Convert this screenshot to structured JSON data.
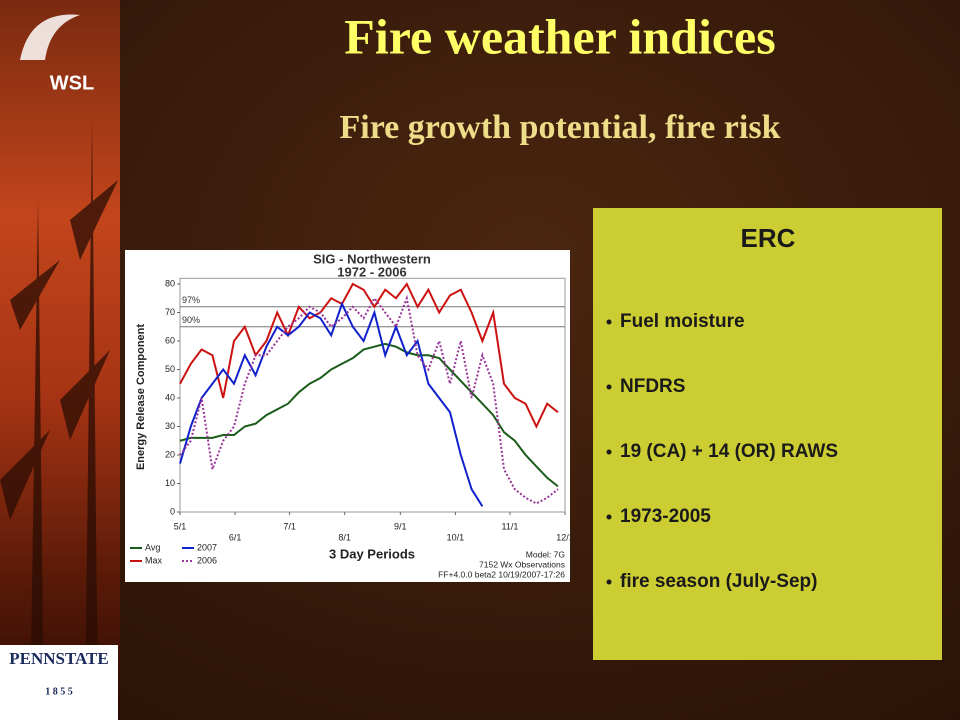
{
  "header": {
    "title": "Fire weather indices",
    "subtitle": "Fire growth potential, fire risk"
  },
  "logos": {
    "top": "WSL",
    "bottom": "PENNSTATE",
    "bottom_year": "1 8 5 5"
  },
  "panel": {
    "title": "ERC",
    "bullets": [
      "Fuel moisture",
      "NFDRS",
      "19 (CA) + 14 (OR) RAWS",
      "1973-2005",
      "fire season (July-Sep)"
    ]
  },
  "chart_data": {
    "type": "line",
    "title": "SIG - Northwestern",
    "subtitle": "1972 - 2006",
    "y_label": "Energy Release Component",
    "x_label": "3 Day Periods",
    "annotations": [
      "Model: 7G",
      "7152 Wx Observations",
      "FF+4.0.0 beta2 10/19/2007-17:26"
    ],
    "reference_lines": [
      {
        "label": "97%",
        "value": 72
      },
      {
        "label": "90%",
        "value": 65
      }
    ],
    "x": [
      0,
      2,
      4,
      6,
      8,
      10,
      12,
      14,
      16,
      18,
      20,
      22,
      24,
      26,
      28,
      30,
      32,
      34,
      36,
      38,
      40,
      42,
      44,
      46,
      48,
      50,
      52,
      54,
      56,
      58,
      60,
      62,
      64,
      66,
      68,
      70
    ],
    "xlim": [
      0,
      71.3
    ],
    "xticks": [
      {
        "value": 0,
        "label": "5/1"
      },
      {
        "value": 10.2,
        "label": "6/1"
      },
      {
        "value": 20.3,
        "label": "7/1"
      },
      {
        "value": 30.5,
        "label": "8/1"
      },
      {
        "value": 40.8,
        "label": "9/1"
      },
      {
        "value": 51,
        "label": "10/1"
      },
      {
        "value": 61.1,
        "label": "11/1"
      },
      {
        "value": 71.3,
        "label": "12/1"
      }
    ],
    "ylim": [
      0,
      82
    ],
    "yticks": [
      0,
      10,
      20,
      30,
      40,
      50,
      60,
      70,
      80
    ],
    "grid": false,
    "series": [
      {
        "name": "Avg",
        "color": "#1a5c1a",
        "dash": false,
        "values": [
          25,
          26,
          26,
          26,
          27,
          27,
          30,
          31,
          34,
          36,
          38,
          42,
          45,
          47,
          50,
          52,
          54,
          57,
          58,
          59,
          58,
          56,
          55,
          55,
          54,
          50,
          46,
          42,
          38,
          34,
          28,
          25,
          20,
          16,
          12,
          9
        ]
      },
      {
        "name": "Max",
        "color": "#cc1111",
        "dash": false,
        "values": [
          45,
          52,
          57,
          55,
          40,
          60,
          65,
          55,
          60,
          70,
          62,
          72,
          68,
          70,
          75,
          73,
          80,
          78,
          72,
          78,
          75,
          80,
          72,
          78,
          70,
          76,
          78,
          70,
          60,
          70,
          45,
          40,
          38,
          30,
          38,
          35
        ]
      },
      {
        "name": "2007",
        "color": "#1122cc",
        "dash": false,
        "values": [
          17,
          30,
          40,
          45,
          50,
          45,
          55,
          48,
          58,
          65,
          62,
          65,
          70,
          68,
          62,
          73,
          65,
          60,
          70,
          55,
          65,
          55,
          60,
          45,
          40,
          35,
          20,
          8,
          2,
          null,
          null,
          null,
          null,
          null,
          null,
          null
        ]
      },
      {
        "name": "2006",
        "color": "#993399",
        "dash": true,
        "values": [
          20,
          25,
          40,
          15,
          25,
          30,
          45,
          55,
          55,
          60,
          65,
          68,
          72,
          70,
          65,
          68,
          72,
          68,
          75,
          70,
          65,
          75,
          55,
          50,
          60,
          45,
          60,
          40,
          55,
          45,
          15,
          8,
          5,
          3,
          5,
          8
        ]
      }
    ]
  }
}
